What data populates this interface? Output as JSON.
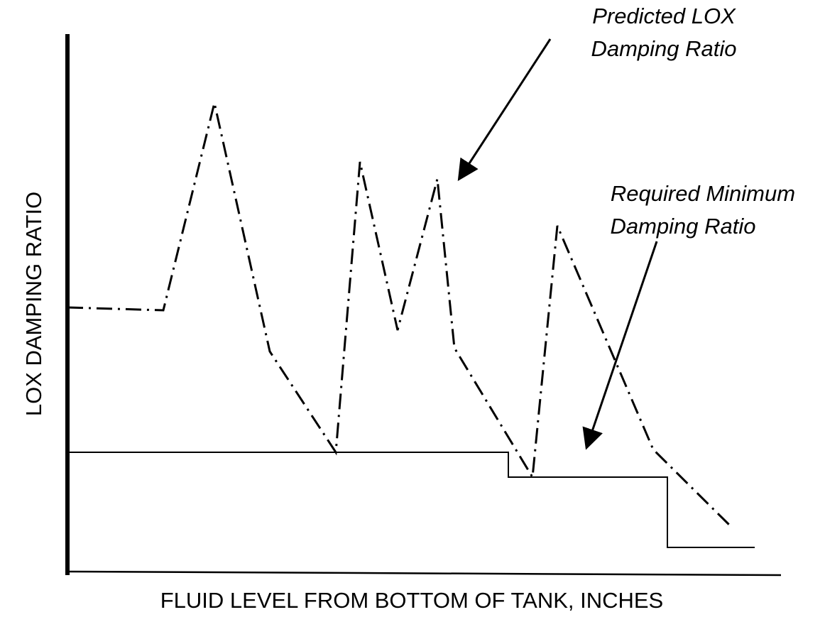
{
  "axes": {
    "y_label": "LOX DAMPING RATIO",
    "x_label": "FLUID LEVEL FROM BOTTOM OF TANK, INCHES"
  },
  "annotations": {
    "predicted": [
      "Predicted LOX",
      "Damping Ratio"
    ],
    "required": [
      "Required Minimum",
      "Damping Ratio"
    ]
  }
}
